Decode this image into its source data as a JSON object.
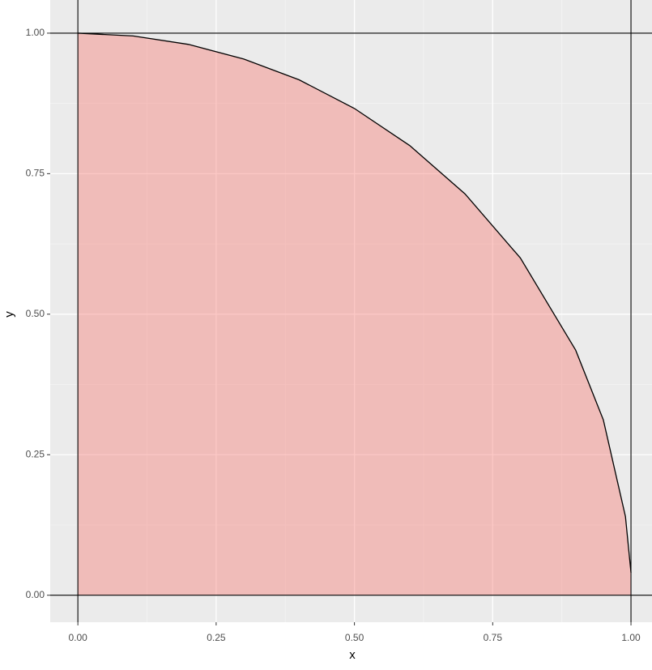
{
  "chart_data": {
    "type": "area",
    "x_label": "x",
    "y_label": "y",
    "x": [
      0,
      0.1,
      0.2,
      0.3,
      0.4,
      0.5,
      0.6,
      0.7,
      0.8,
      0.9,
      0.95,
      0.99,
      1.0
    ],
    "series": [
      {
        "name": "y",
        "color": "#F8766D",
        "values": [
          1,
          0.995,
          0.98,
          0.954,
          0.917,
          0.866,
          0.8,
          0.714,
          0.6,
          0.436,
          0.312,
          0.14,
          0.04
        ]
      }
    ],
    "xlim": [
      -0.05,
      1.038
    ],
    "ylim": [
      -0.048,
      1.059
    ],
    "xticks": [
      {
        "value": 0,
        "label": "0.00"
      },
      {
        "value": 0.25,
        "label": "0.25"
      },
      {
        "value": 0.5,
        "label": "0.50"
      },
      {
        "value": 0.75,
        "label": "0.75"
      },
      {
        "value": 1,
        "label": "1.00"
      }
    ],
    "yticks": [
      {
        "value": 0,
        "label": "0.00"
      },
      {
        "value": 0.25,
        "label": "0.25"
      },
      {
        "value": 0.5,
        "label": "0.50"
      },
      {
        "value": 0.75,
        "label": "0.75"
      },
      {
        "value": 1,
        "label": "1.00"
      }
    ],
    "x_minor_grid": [
      0.125,
      0.375,
      0.625,
      0.875
    ],
    "y_minor_grid": [
      0.125,
      0.375,
      0.625,
      0.875
    ],
    "hlines": [
      0,
      1
    ],
    "vlines": [
      0,
      1
    ],
    "grid": true
  }
}
